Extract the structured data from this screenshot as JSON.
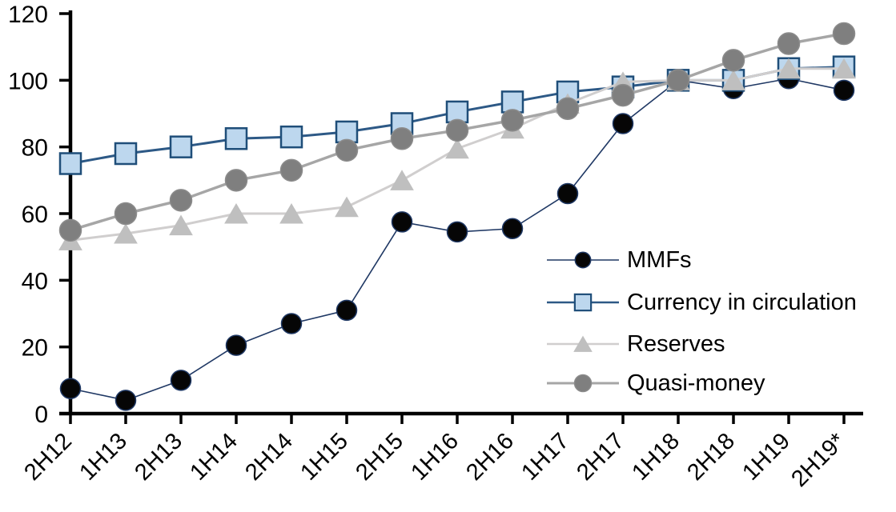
{
  "chart_data": {
    "type": "line",
    "title": "",
    "xlabel": "",
    "ylabel": "",
    "ylim": [
      0,
      120
    ],
    "yticks": [
      0,
      20,
      40,
      60,
      80,
      100,
      120
    ],
    "grid": false,
    "legend_position": "inside-right",
    "categories": [
      "2H12",
      "1H13",
      "2H13",
      "1H14",
      "2H14",
      "1H15",
      "2H15",
      "1H16",
      "2H16",
      "1H17",
      "2H17",
      "1H18",
      "2H18",
      "1H19",
      "2H19*"
    ],
    "series": [
      {
        "name": "MMFs",
        "marker": "circle",
        "marker_fill": "#060606",
        "marker_stroke": "#1f3864",
        "line_color": "#1f3864",
        "line_width": 1.6,
        "marker_size": 25,
        "values": [
          7.5,
          4,
          10,
          20.5,
          27,
          31,
          57.5,
          54.5,
          55.5,
          66,
          87,
          100,
          97.5,
          100.5,
          97
        ]
      },
      {
        "name": "Currency in circulation",
        "marker": "square",
        "marker_fill": "#bdd7ee",
        "marker_stroke": "#1f4e79",
        "line_color": "#2d5986",
        "line_width": 3,
        "marker_size": 26,
        "values": [
          75,
          78,
          80,
          82.5,
          83,
          84.5,
          87,
          90.5,
          93.5,
          96.5,
          98,
          100,
          100,
          103.5,
          104
        ]
      },
      {
        "name": "Reserves",
        "marker": "triangle",
        "marker_fill": "#bfbfbf",
        "marker_stroke": "#bfbfbf",
        "line_color": "#d0cece",
        "line_width": 3,
        "marker_size": 28,
        "values": [
          52,
          54,
          56.5,
          60,
          60,
          62,
          70,
          79.5,
          85.5,
          93,
          99.5,
          100,
          100,
          103.5,
          103.5
        ]
      },
      {
        "name": "Quasi-money",
        "marker": "circle",
        "marker_fill": "#7f7f7f",
        "marker_stroke": "#8c8c8c",
        "line_color": "#a6a6a6",
        "line_width": 3.5,
        "marker_size": 27,
        "values": [
          55,
          60,
          64,
          70,
          73,
          79,
          82.5,
          85,
          88,
          91.5,
          95.5,
          100,
          106,
          111,
          114
        ]
      }
    ],
    "axis_color": "#000000",
    "tick_label_color": "#000000"
  }
}
